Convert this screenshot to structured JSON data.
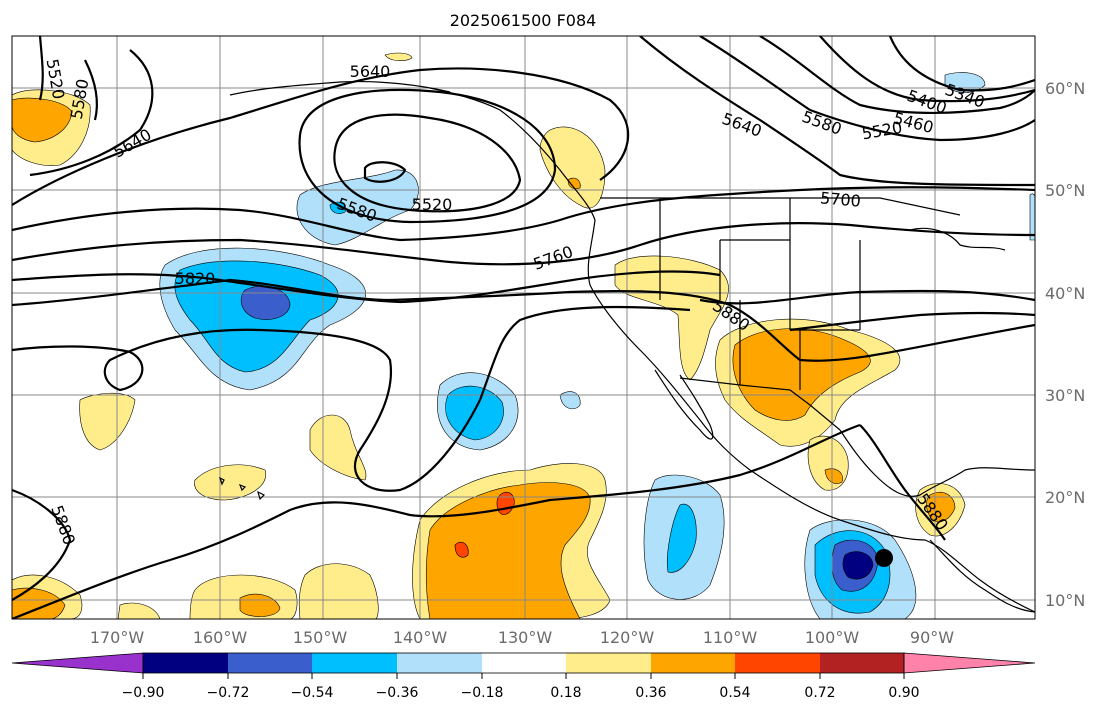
{
  "title": "2025061500 F084",
  "longitude_labels": [
    "170°W",
    "160°W",
    "150°W",
    "140°W",
    "130°W",
    "120°W",
    "110°W",
    "100°W",
    "90°W"
  ],
  "latitude_labels": [
    "60°N",
    "50°N",
    "40°N",
    "30°N",
    "20°N",
    "10°N"
  ],
  "contour_labels": [
    "5520",
    "5580",
    "5640",
    "5640",
    "5520",
    "5580",
    "5640",
    "5580",
    "5520",
    "5460",
    "5400",
    "5340",
    "5700",
    "5760",
    "5820",
    "5880",
    "5880",
    "5880"
  ],
  "colorbar": {
    "tick_labels": [
      "−0.90",
      "−0.72",
      "−0.54",
      "−0.36",
      "−0.18",
      "0.18",
      "0.36",
      "0.54",
      "0.72",
      "0.90"
    ],
    "colors": [
      "#9932cc",
      "#000080",
      "#3a5fcd",
      "#00bfff",
      "#b0e0fa",
      "#ffffff",
      "#ffec8b",
      "#ffa500",
      "#ff4500",
      "#b22222",
      "#ff82ab"
    ]
  },
  "colors": {
    "coast": "#000000",
    "grid": "#888888"
  }
}
